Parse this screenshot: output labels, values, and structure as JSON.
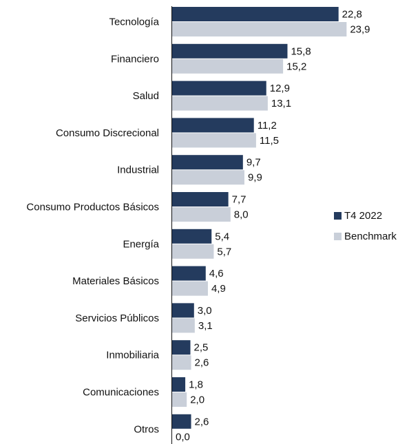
{
  "colors": {
    "series1": "#243b5e",
    "series2": "#c9cfd9",
    "axis": "#111111",
    "text": "#111111"
  },
  "chart_data": {
    "type": "bar",
    "orientation": "horizontal",
    "categories": [
      "Tecnología",
      "Financiero",
      "Salud",
      "Consumo Discrecional",
      "Industrial",
      "Consumo Productos Básicos",
      "Energía",
      "Materiales Básicos",
      "Servicios Públicos",
      "Inmobiliaria",
      "Comunicaciones",
      "Otros"
    ],
    "series": [
      {
        "name": "T4 2022",
        "values": [
          22.8,
          15.8,
          12.9,
          11.2,
          9.7,
          7.7,
          5.4,
          4.6,
          3.0,
          2.5,
          1.8,
          2.6
        ],
        "labels": [
          "22,8",
          "15,8",
          "12,9",
          "11,2",
          "9,7",
          "7,7",
          "5,4",
          "4,6",
          "3,0",
          "2,5",
          "1,8",
          "2,6"
        ]
      },
      {
        "name": "Benchmark",
        "values": [
          23.9,
          15.2,
          13.1,
          11.5,
          9.9,
          8.0,
          5.7,
          4.9,
          3.1,
          2.6,
          2.0,
          0.0
        ],
        "labels": [
          "23,9",
          "15,2",
          "13,1",
          "11,5",
          "9,9",
          "8,0",
          "5,7",
          "4,9",
          "3,1",
          "2,6",
          "2,0",
          "0,0"
        ]
      }
    ],
    "title": "",
    "xlabel": "",
    "ylabel": "",
    "xlim": [
      0,
      25
    ],
    "grid": false,
    "legend_position": "right"
  }
}
